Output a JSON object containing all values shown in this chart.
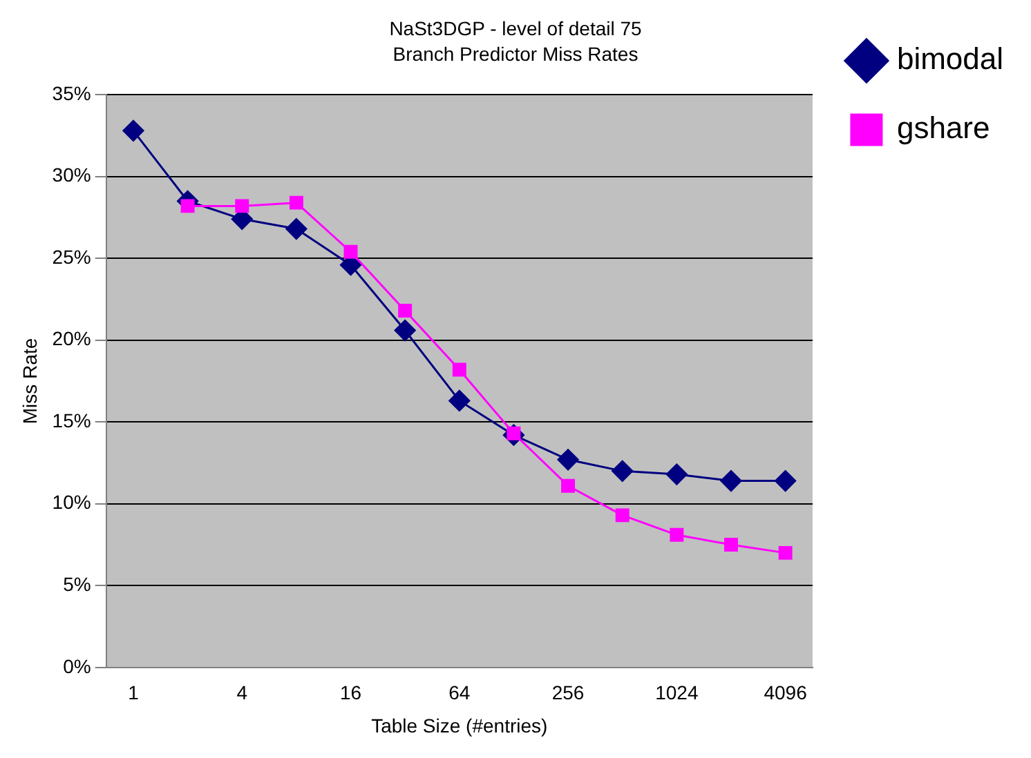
{
  "chart_data": {
    "type": "line",
    "title": "NaSt3DGP - level of detail 75",
    "subtitle": "Branch Predictor Miss Rates",
    "xlabel": "Table Size (#entries)",
    "ylabel": "Miss Rate",
    "categories": [
      "1",
      null,
      "4",
      null,
      "16",
      null,
      "64",
      null,
      "256",
      null,
      "1024",
      null,
      "4096"
    ],
    "series": [
      {
        "name": "bimodal",
        "color": "#000080",
        "marker": "diamond",
        "values": [
          32.8,
          28.5,
          27.4,
          26.8,
          24.6,
          20.6,
          16.3,
          14.2,
          12.7,
          12.0,
          11.8,
          11.4,
          11.4
        ]
      },
      {
        "name": "gshare",
        "color": "#ff00ff",
        "marker": "square",
        "values": [
          null,
          28.2,
          28.2,
          28.4,
          25.4,
          21.8,
          18.2,
          14.3,
          11.1,
          9.3,
          8.1,
          7.5,
          7.0
        ]
      }
    ],
    "ylim": [
      0,
      35
    ],
    "yticks": [
      {
        "value": 0,
        "label": "0%"
      },
      {
        "value": 5,
        "label": "5%"
      },
      {
        "value": 10,
        "label": "10%"
      },
      {
        "value": 15,
        "label": "15%"
      },
      {
        "value": 20,
        "label": "20%"
      },
      {
        "value": 25,
        "label": "25%"
      },
      {
        "value": 30,
        "label": "30%"
      },
      {
        "value": 35,
        "label": "35%"
      }
    ],
    "grid": "y",
    "legend": "top right"
  }
}
